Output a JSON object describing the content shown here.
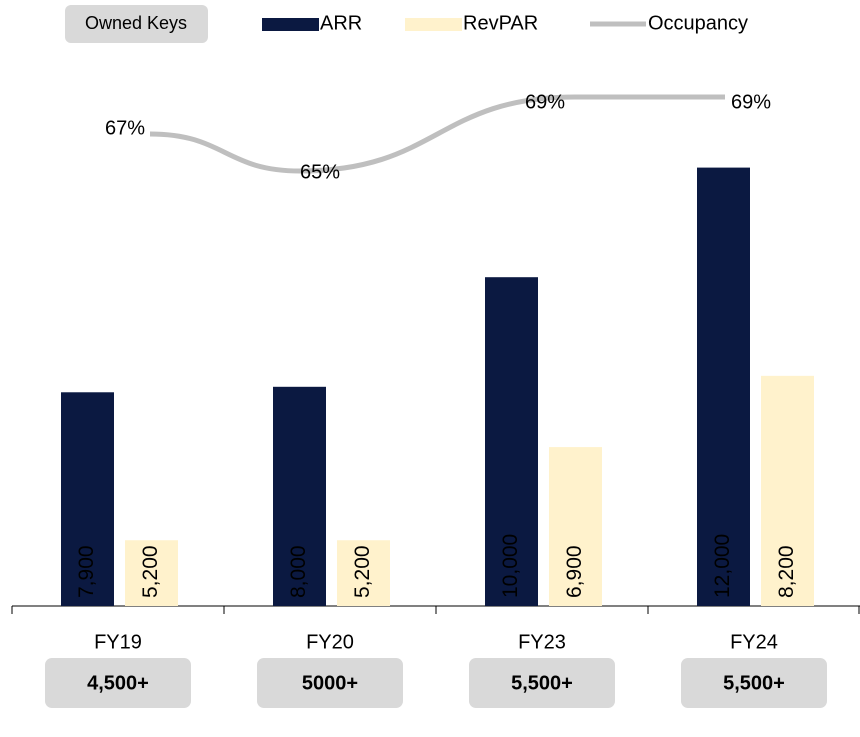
{
  "chart_data": {
    "type": "bar",
    "categories": [
      "FY19",
      "FY20",
      "FY23",
      "FY24"
    ],
    "series": [
      {
        "name": "ARR",
        "color": "#0b1941",
        "values": [
          7900,
          8000,
          10000,
          12000
        ],
        "value_labels": [
          "7,900",
          "8,000",
          "10,000",
          "12,000"
        ]
      },
      {
        "name": "RevPAR",
        "color": "#fff2cc",
        "values": [
          5200,
          5200,
          6900,
          8200
        ],
        "value_labels": [
          "5,200",
          "5,200",
          "6,900",
          "8,200"
        ]
      },
      {
        "name": "Occupancy",
        "type": "line",
        "axis": "y2",
        "color": "#bfbfbf",
        "values": [
          67,
          65,
          69,
          69
        ],
        "value_labels": [
          "67%",
          "65%",
          "69%",
          "69%"
        ]
      }
    ],
    "ylim": [
      4000,
      14000
    ],
    "y2lim": [
      61,
      71
    ],
    "keys_title": "Owned Keys",
    "keys": [
      "4,500+",
      "5000+",
      "5,500+",
      "5,500+"
    ]
  }
}
